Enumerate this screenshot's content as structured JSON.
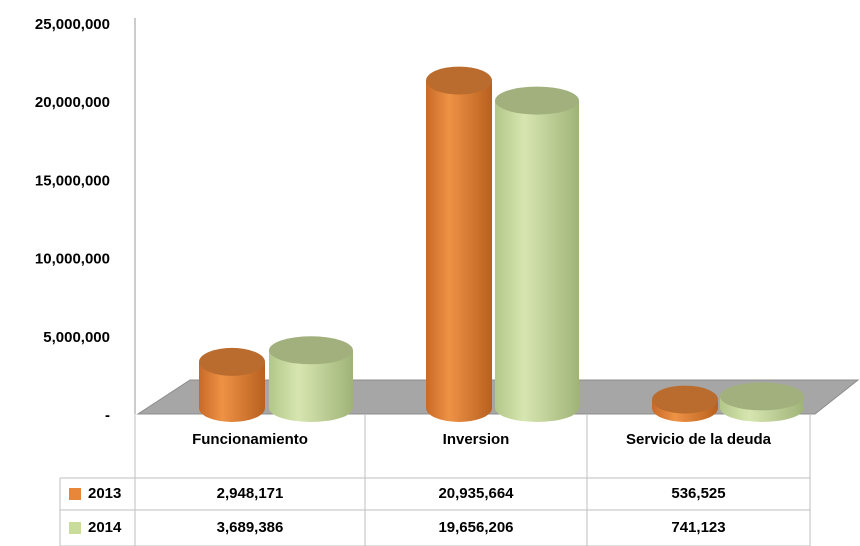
{
  "chart_data": {
    "type": "bar3d",
    "categories": [
      "Funcionamiento",
      "Inversion",
      "Servicio de la deuda"
    ],
    "series": [
      {
        "name": "2013",
        "color": "#e8873a",
        "values": [
          2948171,
          20935664,
          536525
        ],
        "value_labels": [
          "2,948,171",
          "20,935,664",
          "536,525"
        ]
      },
      {
        "name": "2014",
        "color": "#c9dc9c",
        "values": [
          3689386,
          19656206,
          741123
        ],
        "value_labels": [
          "3,689,386",
          "19,656,206",
          "741,123"
        ]
      }
    ],
    "ylim": [
      0,
      25000000
    ],
    "yticks": [
      {
        "value": 0,
        "label": "-"
      },
      {
        "value": 5000000,
        "label": "5,000,000"
      },
      {
        "value": 10000000,
        "label": "10,000,000"
      },
      {
        "value": 15000000,
        "label": "15,000,000"
      },
      {
        "value": 20000000,
        "label": "20,000,000"
      },
      {
        "value": 25000000,
        "label": "25,000,000"
      }
    ],
    "data_table": true
  }
}
